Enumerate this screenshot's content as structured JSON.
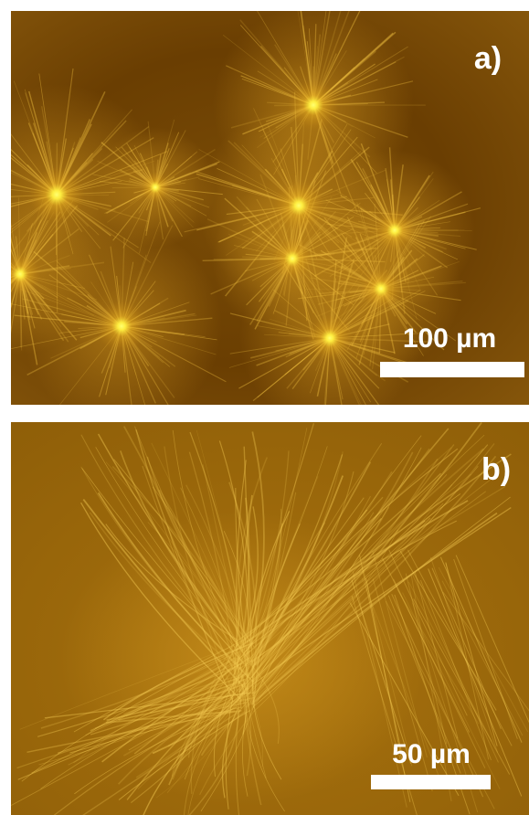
{
  "panels": [
    {
      "label": "a)",
      "scale_bar": "100 µm"
    },
    {
      "label": "b)",
      "scale_bar": "50 µm"
    }
  ]
}
